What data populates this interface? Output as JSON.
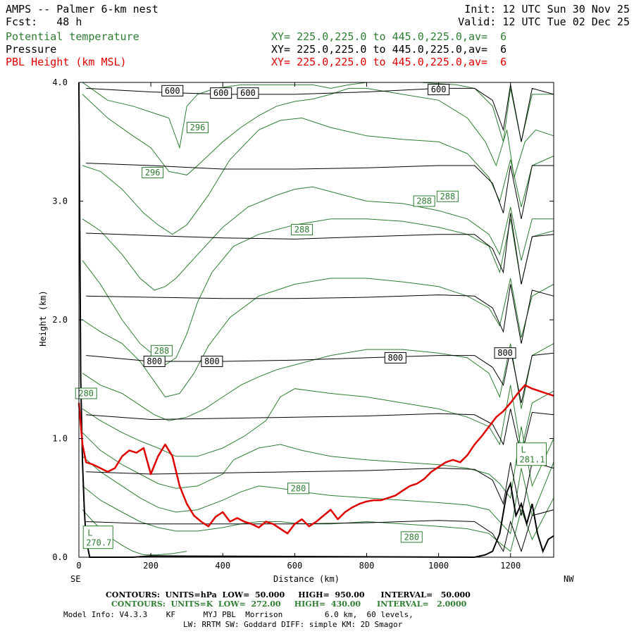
{
  "header": {
    "title": "AMPS -- Palmer 6-km nest",
    "fcst": "Fcst:   48 h",
    "init": "Init: 12 UTC Sun 30 Nov 25",
    "valid": "Valid: 12 UTC Tue 02 Dec 25",
    "fields": [
      {
        "label": "Potential temperature",
        "xy": "XY= 225.0,225.0 to 445.0,225.0,av=  6",
        "color": "#2e7d32"
      },
      {
        "label": "Pressure",
        "xy": "XY= 225.0,225.0 to 445.0,225.0,av=  6",
        "color": "#000000"
      },
      {
        "label": "PBL Height (km MSL)",
        "xy": "XY= 225.0,225.0 to 445.0,225.0,av=  6",
        "color": "#e00000"
      }
    ]
  },
  "chart_data": {
    "type": "line",
    "xlabel": "Distance (km)",
    "ylabel": "Height (km)",
    "xlim": [
      0,
      1320
    ],
    "ylim": [
      0,
      4.0
    ],
    "x_ticks": [
      0,
      200,
      400,
      600,
      800,
      1000,
      1200
    ],
    "x_tick_labels": [
      "0",
      "200",
      "400",
      "600",
      "800",
      "1000",
      "1200"
    ],
    "y_ticks": [
      0,
      1,
      2,
      3,
      4
    ],
    "y_tick_labels": [
      "0.0",
      "1.0",
      "2.0",
      "3.0",
      "4.0"
    ],
    "left_end_label": "SE",
    "right_end_label": "NW",
    "pressure_contours": [
      {
        "x": [
          20,
          200,
          400,
          600,
          800,
          1000,
          1100,
          1150,
          1180,
          1200,
          1230,
          1260,
          1320
        ],
        "y": [
          3.95,
          3.92,
          3.9,
          3.9,
          3.92,
          3.95,
          3.95,
          3.85,
          3.6,
          3.98,
          3.5,
          3.95,
          3.9
        ]
      },
      {
        "x": [
          20,
          200,
          400,
          600,
          800,
          1000,
          1100,
          1150,
          1180,
          1200,
          1230,
          1260,
          1320
        ],
        "y": [
          3.32,
          3.3,
          3.27,
          3.27,
          3.28,
          3.3,
          3.3,
          3.15,
          2.9,
          3.3,
          2.85,
          3.3,
          3.3
        ]
      },
      {
        "x": [
          20,
          200,
          400,
          600,
          800,
          1000,
          1100,
          1150,
          1180,
          1200,
          1230,
          1260,
          1320
        ],
        "y": [
          2.73,
          2.71,
          2.69,
          2.68,
          2.7,
          2.72,
          2.72,
          2.6,
          2.4,
          2.9,
          2.3,
          2.7,
          2.72
        ]
      },
      {
        "x": [
          20,
          200,
          400,
          600,
          800,
          1000,
          1100,
          1150,
          1180,
          1200,
          1230,
          1260,
          1320
        ],
        "y": [
          2.2,
          2.19,
          2.18,
          2.18,
          2.19,
          2.21,
          2.2,
          2.1,
          1.9,
          2.3,
          1.8,
          2.25,
          2.2
        ]
      },
      {
        "x": [
          20,
          200,
          400,
          600,
          800,
          1000,
          1100,
          1150,
          1180,
          1200,
          1230,
          1260,
          1320
        ],
        "y": [
          1.7,
          1.65,
          1.65,
          1.66,
          1.68,
          1.7,
          1.7,
          1.6,
          1.45,
          1.75,
          1.3,
          1.7,
          1.72
        ]
      },
      {
        "x": [
          20,
          200,
          400,
          600,
          800,
          1000,
          1100,
          1150,
          1180,
          1200,
          1230,
          1260,
          1320
        ],
        "y": [
          1.2,
          1.16,
          1.17,
          1.18,
          1.19,
          1.21,
          1.2,
          1.12,
          0.95,
          1.25,
          0.85,
          1.22,
          1.2
        ]
      },
      {
        "x": [
          20,
          200,
          400,
          600,
          800,
          1000,
          1100,
          1150,
          1180,
          1200,
          1230,
          1260,
          1320
        ],
        "y": [
          0.72,
          0.7,
          0.71,
          0.72,
          0.73,
          0.75,
          0.74,
          0.65,
          0.45,
          0.8,
          0.35,
          0.8,
          0.75
        ]
      },
      {
        "x": [
          20,
          200,
          400,
          600,
          800,
          1000,
          1100,
          1150,
          1180,
          1200,
          1230,
          1260,
          1320
        ],
        "y": [
          0.3,
          0.28,
          0.28,
          0.28,
          0.29,
          0.31,
          0.3,
          0.2,
          0.05,
          0.3,
          0.05,
          0.35,
          0.4
        ]
      }
    ],
    "pressure_labels": [
      {
        "text": "600",
        "x": 260,
        "y": 3.93
      },
      {
        "text": "600",
        "x": 395,
        "y": 3.91
      },
      {
        "text": "600",
        "x": 470,
        "y": 3.91
      },
      {
        "text": "600",
        "x": 1000,
        "y": 3.94
      },
      {
        "text": "800",
        "x": 210,
        "y": 1.65
      },
      {
        "text": "800",
        "x": 370,
        "y": 1.65
      },
      {
        "text": "800",
        "x": 880,
        "y": 1.68
      },
      {
        "text": "800",
        "x": 1185,
        "y": 1.72
      }
    ],
    "theta_contours": [
      {
        "x": [
          10,
          80,
          150,
          200,
          250,
          280,
          300,
          330,
          380,
          450,
          550,
          650,
          700,
          750,
          800,
          850,
          950,
          1050,
          1100,
          1150,
          1180,
          1200,
          1230,
          1260,
          1320
        ],
        "y": [
          4.0,
          3.85,
          3.8,
          3.75,
          3.7,
          3.45,
          3.8,
          3.9,
          3.95,
          3.98,
          3.98,
          3.98,
          3.95,
          3.98,
          4.0,
          4.0,
          4.0,
          3.98,
          3.95,
          3.8,
          3.5,
          3.95,
          3.5,
          3.9,
          3.9
        ]
      },
      {
        "x": [
          10,
          80,
          150,
          200,
          250,
          300,
          330,
          400,
          450,
          500,
          550,
          600,
          650,
          700,
          750,
          800,
          900,
          1000,
          1080,
          1130,
          1160,
          1190,
          1210,
          1240,
          1270,
          1320
        ],
        "y": [
          3.9,
          3.7,
          3.55,
          3.45,
          3.25,
          3.22,
          3.3,
          3.5,
          3.62,
          3.72,
          3.8,
          3.84,
          3.86,
          3.9,
          3.95,
          3.95,
          3.9,
          3.85,
          3.7,
          3.5,
          3.3,
          3.6,
          3.2,
          3.5,
          3.6,
          3.55
        ]
      },
      {
        "x": [
          10,
          60,
          120,
          180,
          220,
          260,
          300,
          360,
          420,
          500,
          560,
          620,
          700,
          800,
          900,
          1000,
          1080,
          1140,
          1170,
          1200,
          1230,
          1260,
          1320
        ],
        "y": [
          3.3,
          3.25,
          3.1,
          2.9,
          2.8,
          2.72,
          2.8,
          3.05,
          3.35,
          3.6,
          3.68,
          3.7,
          3.62,
          3.55,
          3.52,
          3.5,
          3.4,
          3.2,
          3.0,
          3.35,
          2.95,
          3.3,
          3.38
        ]
      },
      {
        "x": [
          10,
          60,
          120,
          170,
          210,
          240,
          270,
          330,
          400,
          470,
          550,
          600,
          650,
          700,
          800,
          900,
          1000,
          1080,
          1140,
          1170,
          1200,
          1230,
          1260,
          1320
        ],
        "y": [
          2.85,
          2.75,
          2.55,
          2.35,
          2.25,
          2.28,
          2.35,
          2.55,
          2.78,
          2.95,
          3.05,
          3.1,
          3.12,
          3.08,
          3.0,
          2.98,
          2.92,
          2.85,
          2.72,
          2.55,
          2.95,
          2.5,
          2.85,
          2.85
        ]
      },
      {
        "x": [
          10,
          60,
          120,
          170,
          210,
          240,
          270,
          300,
          330,
          370,
          430,
          500,
          600,
          700,
          800,
          900,
          1000,
          1080,
          1140,
          1170,
          1200,
          1230,
          1260,
          1320
        ],
        "y": [
          2.5,
          2.3,
          2.0,
          1.8,
          1.7,
          1.62,
          1.68,
          1.88,
          2.15,
          2.4,
          2.62,
          2.72,
          2.8,
          2.85,
          2.85,
          2.83,
          2.78,
          2.72,
          2.62,
          2.4,
          2.85,
          2.3,
          2.7,
          2.75
        ]
      },
      {
        "x": [
          10,
          60,
          120,
          170,
          210,
          240,
          280,
          320,
          360,
          420,
          500,
          600,
          700,
          800,
          900,
          1000,
          1080,
          1140,
          1170,
          1200,
          1230,
          1260,
          1320
        ],
        "y": [
          2.0,
          1.9,
          1.8,
          1.65,
          1.48,
          1.35,
          1.38,
          1.55,
          1.78,
          2.02,
          2.2,
          2.3,
          2.35,
          2.35,
          2.32,
          2.28,
          2.2,
          2.1,
          1.95,
          2.35,
          1.85,
          2.2,
          2.3
        ]
      },
      {
        "x": [
          10,
          60,
          120,
          170,
          210,
          250,
          300,
          350,
          400,
          450,
          500,
          550,
          600,
          700,
          800,
          900,
          1000,
          1080,
          1140,
          1170,
          1200,
          1230,
          1260,
          1320
        ],
        "y": [
          1.55,
          1.45,
          1.38,
          1.28,
          1.2,
          1.15,
          1.18,
          1.25,
          1.35,
          1.45,
          1.52,
          1.58,
          1.62,
          1.7,
          1.75,
          1.75,
          1.72,
          1.68,
          1.55,
          1.35,
          1.8,
          1.25,
          1.7,
          1.8
        ]
      },
      {
        "x": [
          10,
          60,
          120,
          170,
          220,
          270,
          330,
          400,
          460,
          520,
          560,
          600,
          650,
          700,
          800,
          900,
          1000,
          1080,
          1140,
          1170,
          1200,
          1230,
          1260,
          1320
        ],
        "y": [
          1.25,
          1.15,
          1.05,
          0.98,
          0.92,
          0.85,
          0.85,
          0.92,
          1.02,
          1.15,
          1.35,
          1.42,
          1.4,
          1.38,
          1.35,
          1.3,
          1.25,
          1.18,
          1.1,
          0.95,
          1.45,
          0.9,
          1.3,
          1.4
        ]
      },
      {
        "x": [
          10,
          60,
          120,
          170,
          220,
          270,
          330,
          400,
          430,
          500,
          560,
          620,
          700,
          800,
          900,
          1000,
          1080,
          1140,
          1170,
          1200,
          1230,
          1260,
          1320
        ],
        "y": [
          1.05,
          0.9,
          0.78,
          0.7,
          0.62,
          0.58,
          0.6,
          0.7,
          0.82,
          0.92,
          0.95,
          0.9,
          0.85,
          0.82,
          0.8,
          0.78,
          0.75,
          0.7,
          0.62,
          0.5,
          1.1,
          0.6,
          1.0
        ]
      },
      {
        "x": [
          10,
          60,
          120,
          170,
          220,
          270,
          330,
          400,
          450,
          500,
          560,
          620,
          700,
          800,
          900,
          1000,
          1080,
          1140,
          1170,
          1200,
          1230,
          1260,
          1320
        ],
        "y": [
          0.85,
          0.72,
          0.6,
          0.5,
          0.42,
          0.38,
          0.4,
          0.48,
          0.55,
          0.6,
          0.58,
          0.55,
          0.52,
          0.5,
          0.48,
          0.46,
          0.44,
          0.4,
          0.3,
          0.2,
          0.75,
          0.35,
          0.8
        ]
      },
      {
        "x": [
          10,
          60,
          120,
          170,
          220,
          270,
          330,
          400,
          450,
          500,
          560,
          620,
          700,
          800,
          900,
          1000,
          1080,
          1140,
          1170,
          1200,
          1230,
          1260,
          1320
        ],
        "y": [
          0.6,
          0.48,
          0.38,
          0.3,
          0.25,
          0.22,
          0.22,
          0.25,
          0.28,
          0.3,
          0.3,
          0.28,
          0.28,
          0.3,
          0.28,
          0.26,
          0.24,
          0.2,
          0.12,
          0.05,
          0.4,
          0.15,
          0.5
        ]
      },
      {
        "x": [
          10,
          40,
          80,
          120,
          150,
          180,
          220,
          260,
          300
        ],
        "y": [
          0.4,
          0.3,
          0.18,
          0.1,
          0.05,
          0.02,
          0.02,
          0.03,
          0.05
        ]
      }
    ],
    "theta_labels": [
      {
        "text": "296",
        "x": 330,
        "y": 3.62
      },
      {
        "text": "296",
        "x": 205,
        "y": 3.24
      },
      {
        "text": "288",
        "x": 960,
        "y": 3.0
      },
      {
        "text": "288",
        "x": 1025,
        "y": 3.04
      },
      {
        "text": "288",
        "x": 620,
        "y": 2.76
      },
      {
        "text": "288",
        "x": 230,
        "y": 1.74
      },
      {
        "text": "280",
        "x": 20,
        "y": 1.38
      },
      {
        "text": "280",
        "x": 610,
        "y": 0.58
      },
      {
        "text": "280",
        "x": 925,
        "y": 0.17
      }
    ],
    "extrema_labels": [
      {
        "text": "L",
        "value": "270.7",
        "x": 20,
        "y": 0.18
      },
      {
        "text": "L",
        "value": "281.1",
        "x": 1225,
        "y": 0.88
      }
    ],
    "pbl_height": {
      "x": [
        0,
        10,
        20,
        40,
        60,
        80,
        100,
        120,
        140,
        160,
        180,
        200,
        220,
        240,
        260,
        280,
        300,
        320,
        340,
        360,
        380,
        400,
        420,
        440,
        460,
        480,
        500,
        520,
        540,
        560,
        580,
        600,
        620,
        640,
        660,
        680,
        700,
        720,
        740,
        760,
        780,
        800,
        820,
        840,
        860,
        880,
        900,
        920,
        940,
        960,
        980,
        1000,
        1020,
        1040,
        1060,
        1080,
        1100,
        1120,
        1140,
        1160,
        1180,
        1200,
        1220,
        1240,
        1260,
        1280,
        1300,
        1320
      ],
      "y": [
        1.3,
        0.95,
        0.8,
        0.78,
        0.75,
        0.72,
        0.75,
        0.85,
        0.9,
        0.88,
        0.92,
        0.7,
        0.85,
        0.95,
        0.85,
        0.6,
        0.45,
        0.35,
        0.3,
        0.26,
        0.34,
        0.38,
        0.3,
        0.33,
        0.3,
        0.28,
        0.25,
        0.3,
        0.28,
        0.24,
        0.2,
        0.28,
        0.32,
        0.26,
        0.3,
        0.35,
        0.4,
        0.32,
        0.38,
        0.42,
        0.45,
        0.47,
        0.48,
        0.48,
        0.5,
        0.52,
        0.56,
        0.6,
        0.62,
        0.66,
        0.72,
        0.76,
        0.8,
        0.82,
        0.8,
        0.86,
        0.95,
        1.02,
        1.1,
        1.18,
        1.23,
        1.3,
        1.38,
        1.45,
        1.42,
        1.4,
        1.38,
        1.36
      ]
    },
    "terrain": {
      "x": [
        0,
        5,
        10,
        15,
        20,
        30,
        60,
        100,
        150,
        200,
        1100,
        1130,
        1150,
        1170,
        1190,
        1200,
        1215,
        1230,
        1245,
        1260,
        1275,
        1290,
        1305,
        1320
      ],
      "y": [
        4.0,
        1.5,
        0.8,
        0.4,
        0.15,
        0.0,
        0.0,
        0.0,
        0.0,
        0.01,
        0.0,
        0.02,
        0.05,
        0.2,
        0.55,
        0.62,
        0.35,
        0.45,
        0.28,
        0.45,
        0.2,
        0.05,
        0.15,
        0.18
      ]
    }
  },
  "footer": {
    "line1": "CONTOURS:  UNITS=hPa  LOW=  50.000     HIGH=  950.00      INTERVAL=   50.000",
    "line2": "CONTOURS:  UNITS=K  LOW=  272.00     HIGH=  430.00      INTERVAL=   2.0000",
    "line3": "Model Info: V4.3.3    KF      MYJ PBL  Morrison         6.0 km,  60 levels,",
    "line4": "LW: RRTM SW: Goddard DIFF: simple KM: 2D Smagor"
  }
}
